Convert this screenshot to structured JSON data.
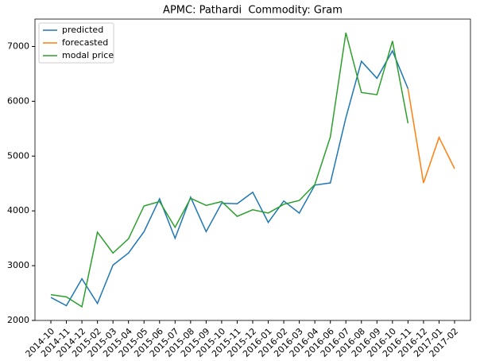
{
  "chart_data": {
    "type": "line",
    "title": "APMC: Pathardi  Commodity: Gram",
    "categories": [
      "2014-10",
      "2014-11",
      "2014-12",
      "2015-02",
      "2015-03",
      "2015-04",
      "2015-05",
      "2015-06",
      "2015-07",
      "2015-08",
      "2015-09",
      "2015-10",
      "2015-11",
      "2015-12",
      "2016-01",
      "2016-02",
      "2016-03",
      "2016-04",
      "2016-06",
      "2016-07",
      "2016-08",
      "2016-09",
      "2016-10",
      "2016-11",
      "2016-12",
      "2017-01",
      "2017-02"
    ],
    "series": [
      {
        "name": "predicted",
        "color": "#1f77b4",
        "values": [
          2420,
          2270,
          2760,
          2310,
          3010,
          3230,
          3620,
          4220,
          3500,
          4250,
          3620,
          4140,
          4130,
          4340,
          3790,
          4180,
          3960,
          4470,
          4510,
          5700,
          6730,
          6420,
          6920,
          6230,
          null,
          null,
          null
        ]
      },
      {
        "name": "forecasted",
        "color": "#ff7f0e",
        "values": [
          null,
          null,
          null,
          null,
          null,
          null,
          null,
          null,
          null,
          null,
          null,
          null,
          null,
          null,
          null,
          null,
          null,
          null,
          null,
          null,
          null,
          null,
          null,
          6230,
          4510,
          5340,
          4770
        ]
      },
      {
        "name": "modal price",
        "color": "#2ca02c",
        "values": [
          2470,
          2430,
          2250,
          3610,
          3230,
          3490,
          4090,
          4170,
          3700,
          4230,
          4100,
          4170,
          3900,
          4020,
          3960,
          4120,
          4190,
          4480,
          5350,
          7250,
          6160,
          6120,
          7100,
          5600,
          null,
          null,
          null
        ]
      }
    ],
    "ylim": [
      2000,
      7500
    ],
    "yticks": [
      2000,
      3000,
      4000,
      5000,
      6000,
      7000
    ],
    "legend": "upper left",
    "grid": false
  }
}
